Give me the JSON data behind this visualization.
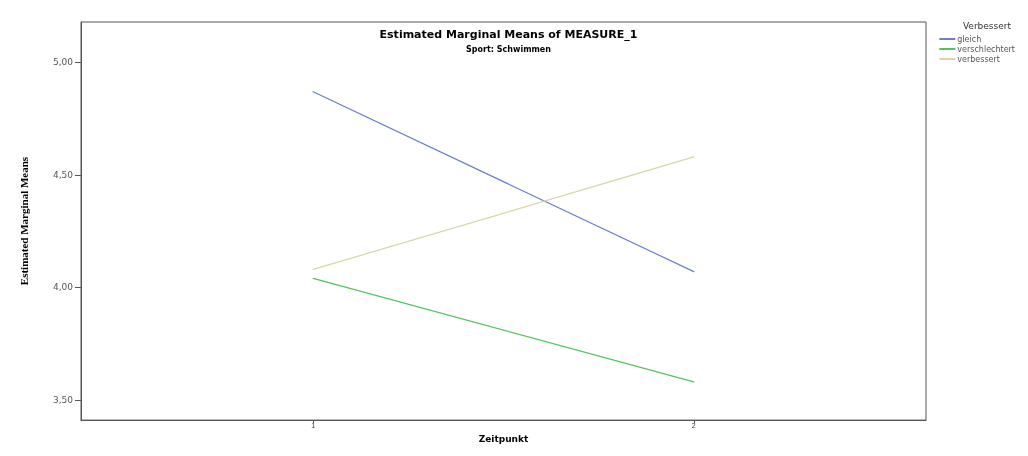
{
  "chart_data": {
    "type": "line",
    "title": "Estimated Marginal Means of MEASURE_1",
    "subtitle": "Sport: Schwimmen",
    "xlabel": "Zeitpunkt",
    "ylabel": "Estimated Marginal Means",
    "legend_title": "Verbessert",
    "x": [
      1,
      2
    ],
    "xlim": [
      0.39,
      2.61
    ],
    "xticks": [
      1,
      2
    ],
    "ylim": [
      3.41,
      5.18
    ],
    "yticks": [
      {
        "value": 3.5,
        "label": "3,50"
      },
      {
        "value": 4,
        "label": "4,00"
      },
      {
        "value": 4.5,
        "label": "4,50"
      },
      {
        "value": 5,
        "label": "5,00"
      }
    ],
    "series": [
      {
        "name": "gleich",
        "color": "#6a7fcc",
        "values": [
          4.87,
          4.07
        ]
      },
      {
        "name": "verschlechtert",
        "color": "#54c25e",
        "values": [
          4.04,
          3.58
        ]
      },
      {
        "name": "verbessert",
        "color": "#d8d4a8",
        "values": [
          4.08,
          4.58
        ]
      }
    ],
    "legend": "top right",
    "grid": false,
    "marker": "none"
  }
}
